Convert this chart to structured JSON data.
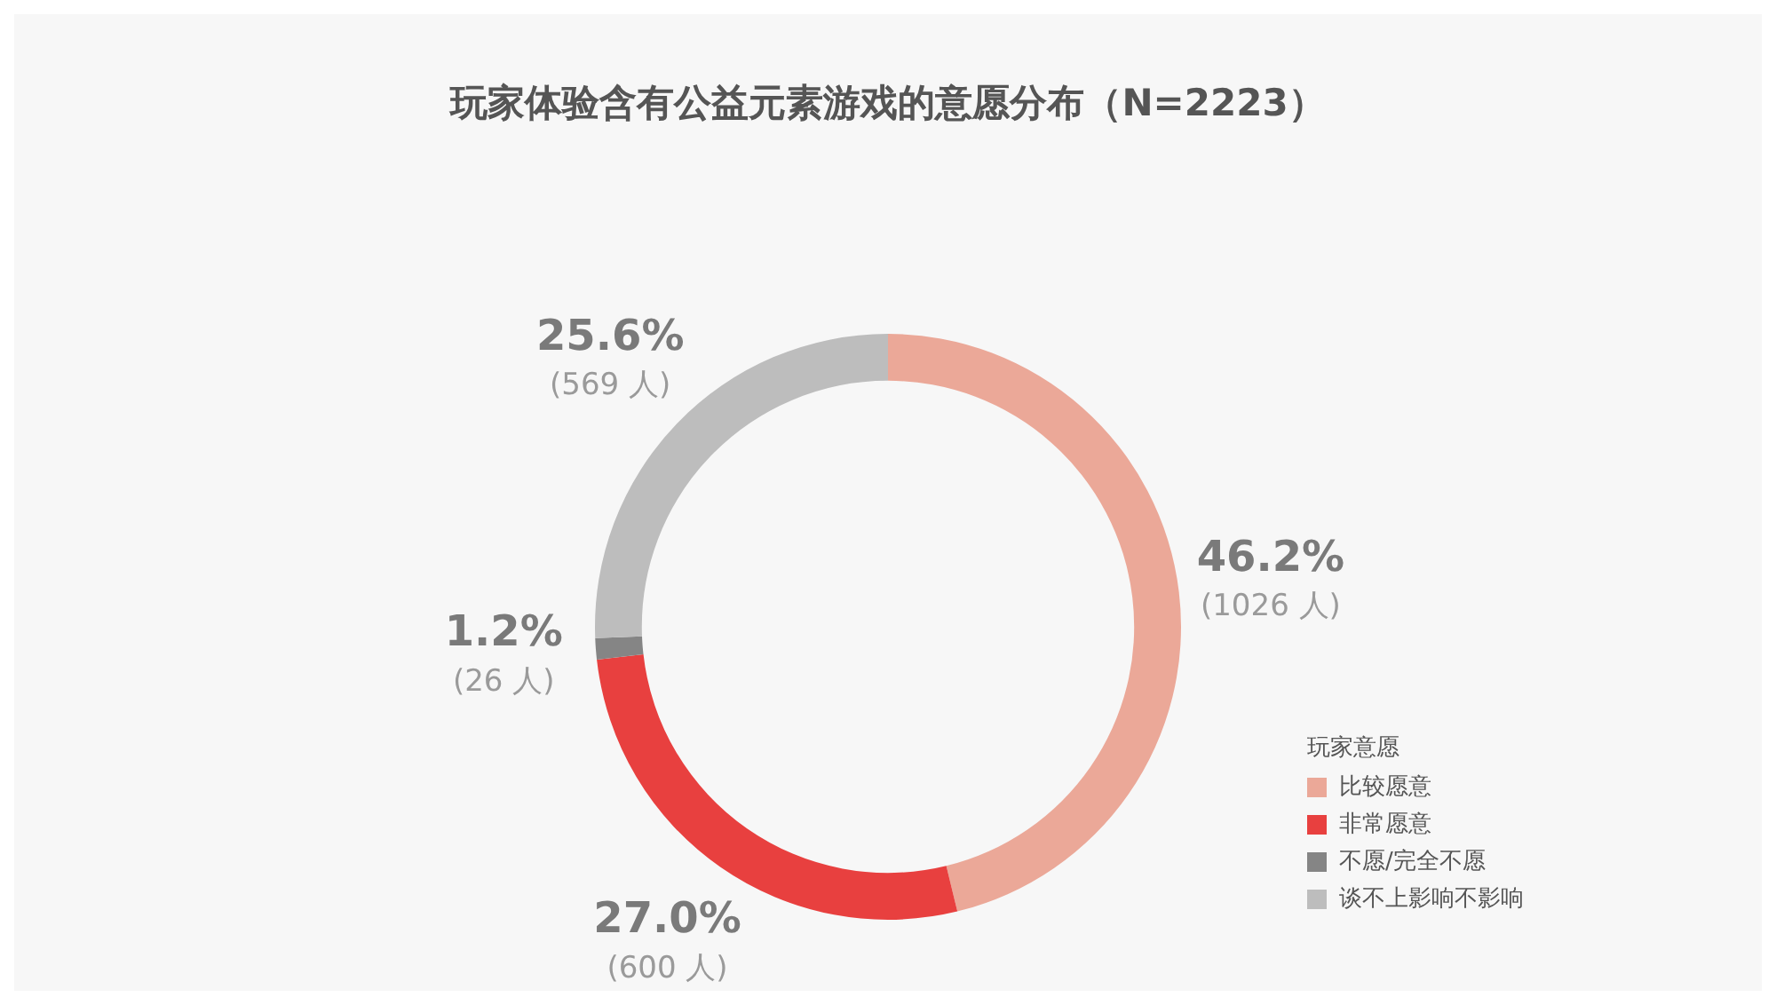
{
  "chart_data": {
    "type": "donut",
    "title": "玩家体验含有公益元素游戏的意愿分布（N=2223）",
    "categories": [
      "比较愿意",
      "非常愿意",
      "不愿/完全不愿",
      "谈不上影响不影响"
    ],
    "values": [
      1026,
      600,
      26,
      569
    ],
    "colors": [
      "#eba898",
      "#e8403f",
      "#858585",
      "#bdbdbd"
    ],
    "value_labels": [
      "46.2%\n(1026 人)",
      "27.0%\n(600 人)",
      "1.2%\n(26 人)",
      "25.6%\n(569 人)"
    ],
    "legend": "bottom right",
    "legend_title": "玩家意愿"
  }
}
